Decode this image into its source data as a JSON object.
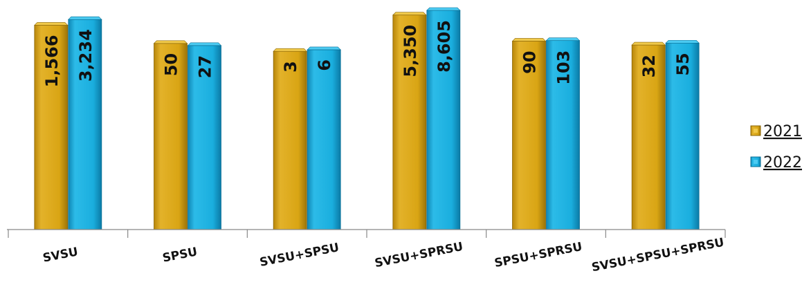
{
  "chart_data": {
    "type": "bar",
    "categories": [
      "SVSU",
      "SPSU",
      "SVSU+SPSU",
      "SVSU+SPRSU",
      "SPSU+SPRSU",
      "SVSU+SPSU+SPRSU"
    ],
    "series": [
      {
        "name": "2021",
        "values": [
          1566,
          50,
          3,
          5350,
          90,
          32
        ],
        "labels": [
          "1,566",
          "50",
          "3",
          "5,350",
          "90",
          "32"
        ],
        "color": "#d9a514"
      },
      {
        "name": "2022",
        "values": [
          3234,
          27,
          6,
          8605,
          103,
          55
        ],
        "labels": [
          "3,234",
          "27",
          "6",
          "8,605",
          "103",
          "55"
        ],
        "color": "#1aaede"
      }
    ],
    "scale": "non-linear (bar heights not proportional to values)",
    "legend_position": "right",
    "grid": false,
    "xlabel": "",
    "ylabel": "",
    "title": ""
  }
}
